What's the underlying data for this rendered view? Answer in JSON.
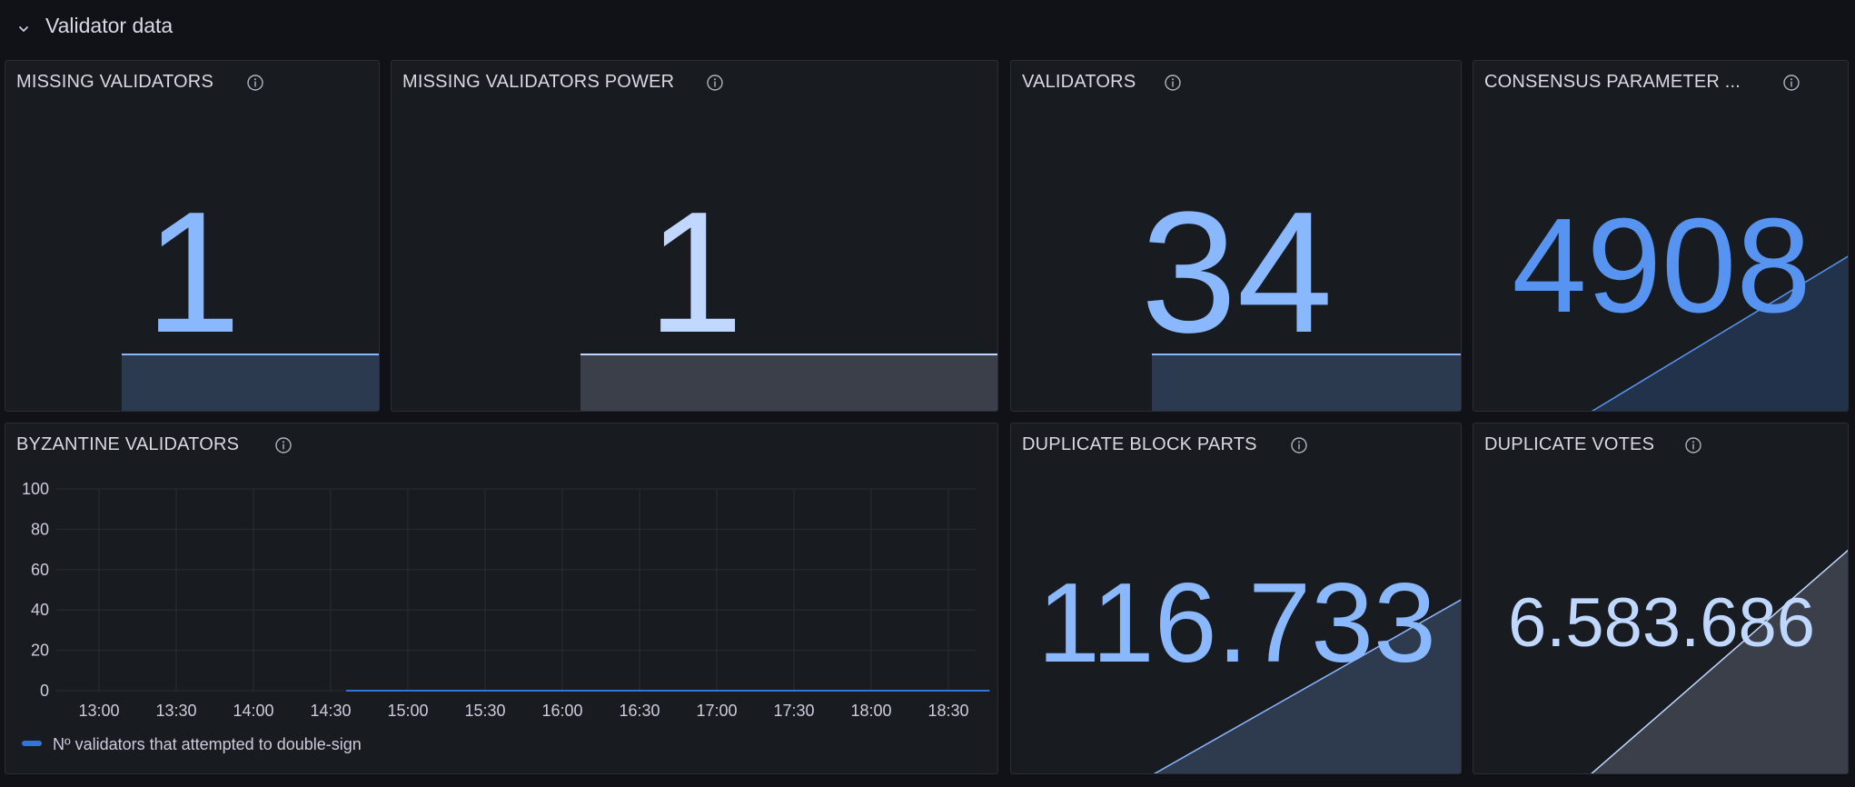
{
  "row": {
    "title": "Validator data",
    "collapse_icon": "chevron-down-icon"
  },
  "colors": {
    "background": "#111217",
    "panel": "#181b1f",
    "blue": "#8ab8ff",
    "blue_dark": "#5794f2",
    "light_blue": "#c0d8ff",
    "series_line": "#3274d9"
  },
  "panels": {
    "missing_validators": {
      "title": "MISSING VALIDATORS",
      "value": "1",
      "info_icon": "info-icon"
    },
    "missing_validators_power": {
      "title": "MISSING VALIDATORS POWER",
      "value": "1",
      "info_icon": "info-icon"
    },
    "validators": {
      "title": "VALIDATORS",
      "value": "34",
      "info_icon": "info-icon"
    },
    "consensus_parameter": {
      "title": "CONSENSUS PARAMETER ...",
      "value": "4908",
      "info_icon": "info-icon"
    },
    "byzantine_validators": {
      "title": "BYZANTINE VALIDATORS",
      "info_icon": "info-icon"
    },
    "duplicate_block_parts": {
      "title": "DUPLICATE BLOCK PARTS",
      "value": "116.733",
      "info_icon": "info-icon"
    },
    "duplicate_votes": {
      "title": "DUPLICATE VOTES",
      "value": "6.583.686",
      "info_icon": "info-icon"
    }
  },
  "chart_data": {
    "type": "line",
    "x": [
      "13:00",
      "13:30",
      "14:00",
      "14:30",
      "15:00",
      "15:30",
      "16:00",
      "16:30",
      "17:00",
      "17:30",
      "18:00",
      "18:30"
    ],
    "ylim": [
      0,
      100
    ],
    "yticks": [
      "100",
      "80",
      "60",
      "40",
      "20",
      "0"
    ],
    "grid": true,
    "legend_position": "bottom-left",
    "series": [
      {
        "name": "Nº validators that attempted to double-sign",
        "x": [
          "14:36",
          "18:46"
        ],
        "values": [
          0,
          0
        ]
      }
    ]
  }
}
